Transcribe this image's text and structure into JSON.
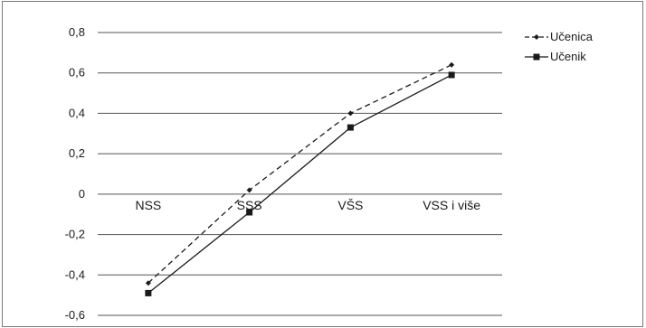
{
  "chart_data": {
    "type": "line",
    "title": "",
    "xlabel": "",
    "ylabel": "",
    "categories": [
      "NSS",
      "SSS",
      "VŠS",
      "VSS i više"
    ],
    "ylim": [
      -0.6,
      0.8
    ],
    "yticks": [
      0.8,
      0.6,
      0.4,
      0.2,
      0,
      -0.2,
      -0.4,
      -0.6
    ],
    "ytick_labels": [
      "0,8",
      "0,6",
      "0,4",
      "0,2",
      "0",
      "-0,2",
      "-0,4",
      "-0,6"
    ],
    "grid": true,
    "legend_position": "top-right",
    "series": [
      {
        "name": "Učenica",
        "values": [
          -0.44,
          0.02,
          0.4,
          0.64
        ],
        "line_style": "dashed",
        "marker": "diamond",
        "color": "#1a1a1a"
      },
      {
        "name": "Učenik",
        "values": [
          -0.49,
          -0.09,
          0.33,
          0.59
        ],
        "line_style": "solid",
        "marker": "square",
        "color": "#1a1a1a"
      }
    ]
  }
}
